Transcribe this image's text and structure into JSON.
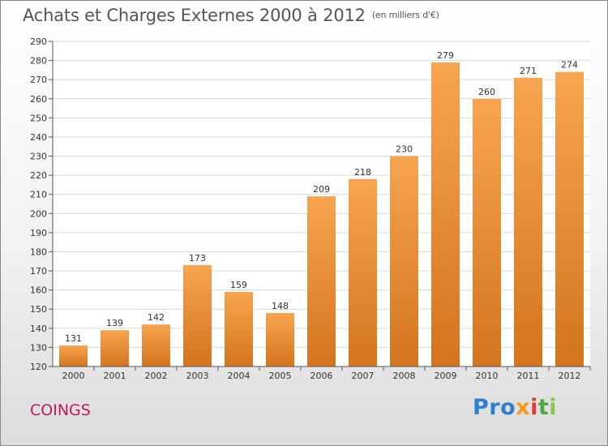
{
  "title": "Achats et Charges Externes 2000 à 2012",
  "subtitle": "(en milliers d'€)",
  "commune": "COINGS",
  "logo": [
    "Pro",
    "x",
    "i",
    "t",
    "i"
  ],
  "colors": {
    "bar_light": "#f7a550",
    "bar_dark": "#d4741e",
    "commune": "#c2185b",
    "title": "#555555"
  },
  "chart_data": {
    "type": "bar",
    "title": "Achats et Charges Externes 2000 à 2012",
    "subtitle": "(en milliers d'€)",
    "categories": [
      "2000",
      "2001",
      "2002",
      "2003",
      "2004",
      "2005",
      "2006",
      "2007",
      "2008",
      "2009",
      "2010",
      "2011",
      "2012"
    ],
    "values": [
      131,
      139,
      142,
      173,
      159,
      148,
      209,
      218,
      230,
      279,
      260,
      271,
      274
    ],
    "ylim": [
      120,
      290
    ],
    "yticks": [
      120,
      130,
      140,
      150,
      160,
      170,
      180,
      190,
      200,
      210,
      220,
      230,
      240,
      250,
      260,
      270,
      280,
      290
    ],
    "grid": true,
    "legend": "none"
  }
}
